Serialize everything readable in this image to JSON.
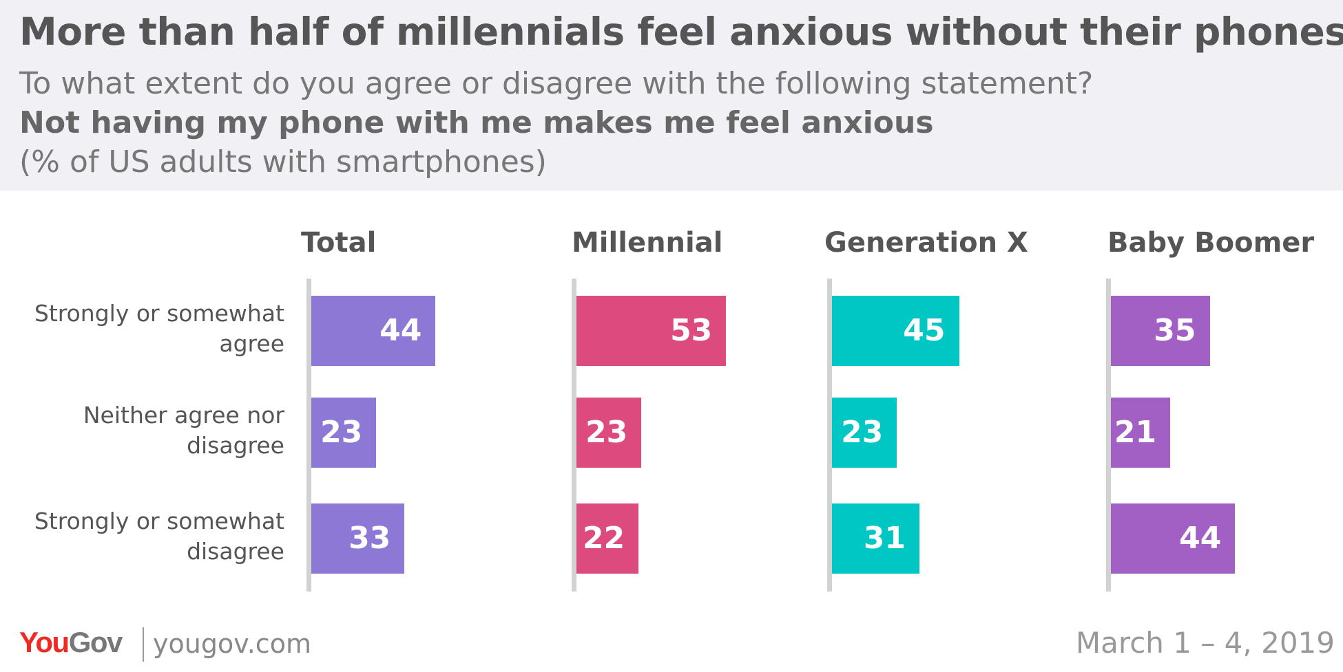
{
  "chart_data": {
    "type": "bar",
    "title": "More than half of millennials feel anxious without their phones",
    "question": "To what extent do you agree or disagree with the following statement?",
    "statement": "Not having my phone with me makes me feel anxious",
    "note": "(% of US adults with smartphones)",
    "categories_lines": [
      [
        "Strongly or somewhat",
        "agree"
      ],
      [
        "Neither agree nor",
        "disagree"
      ],
      [
        "Strongly or somewhat",
        "disagree"
      ]
    ],
    "categories": [
      "Strongly or somewhat agree",
      "Neither agree nor disagree",
      "Strongly or somewhat disagree"
    ],
    "series": [
      {
        "name": "Total",
        "values": [
          44,
          23,
          33
        ],
        "color": "#8e78d6"
      },
      {
        "name": "Millennial",
        "values": [
          53,
          23,
          22
        ],
        "color": "#dc4a7e"
      },
      {
        "name": "Generation X",
        "values": [
          45,
          23,
          31
        ],
        "color": "#00c6c4"
      },
      {
        "name": "Baby Boomer",
        "values": [
          35,
          21,
          44
        ],
        "color": "#a260c5"
      }
    ]
  },
  "footer": {
    "brand_you": "You",
    "brand_gov": "Gov",
    "site": "yougov.com",
    "date": "March 1 – 4, 2019"
  }
}
